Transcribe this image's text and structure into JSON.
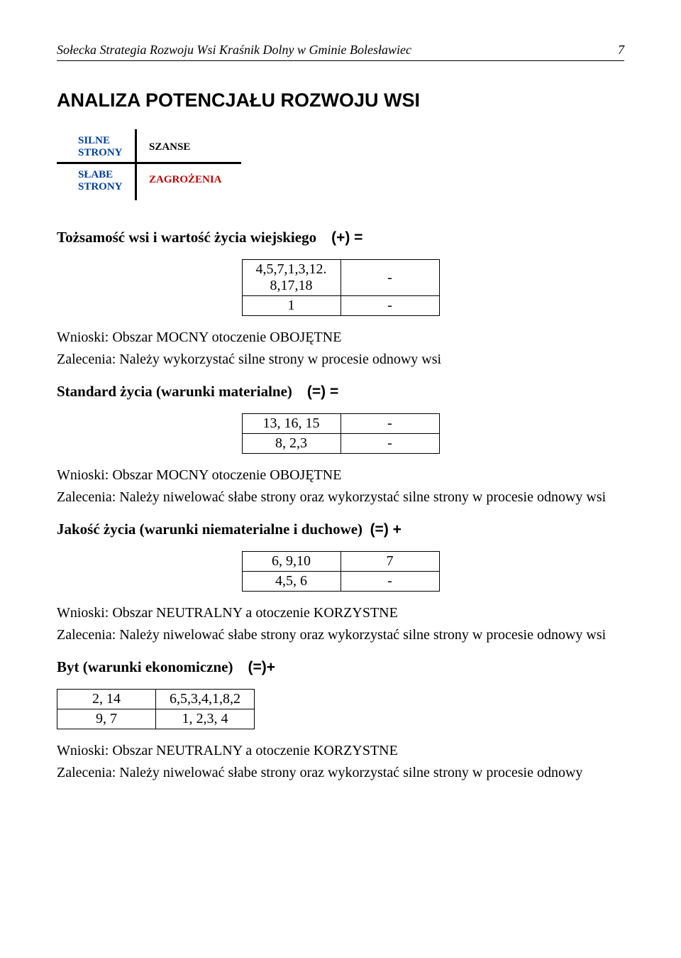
{
  "header": {
    "title_italic": "Sołecka Strategia Rozwoju Wsi  Kraśnik Dolny w Gminie Bolesławiec",
    "page_number": "7"
  },
  "main_title": "ANALIZA POTENCJAŁU ROZWOJU WSI",
  "swot": {
    "silne": "SILNE\nSTRONY",
    "szanse": "SZANSE",
    "slabe": "SŁABE\nSTRONY",
    "zagrozenia": "ZAGROŻENIA",
    "colors": {
      "silne": "#003f9a",
      "slabe": "#003f9a",
      "szanse": "#000000",
      "zagrozenia": "#c00000",
      "lines": "#000000"
    }
  },
  "sections": {
    "tozsamosc": {
      "title": "Tożsamość wsi i wartość życia wiejskiego",
      "expr": "(+) =",
      "table": {
        "r1c1": "4,5,7,1,3,12.\n8,17,18",
        "r1c2": "-",
        "r2c1": "1",
        "r2c2": "-"
      },
      "wnioski": "Wnioski: Obszar MOCNY otoczenie OBOJĘTNE",
      "zalecenia": "Zalecenia: Należy wykorzystać silne strony w procesie odnowy wsi"
    },
    "standard": {
      "title": "Standard życia (warunki materialne)",
      "expr": "(=) =",
      "table": {
        "r1c1": "13, 16, 15",
        "r1c2": "-",
        "r2c1": "8, 2,3",
        "r2c2": "-"
      },
      "wnioski": "Wnioski: Obszar MOCNY otoczenie OBOJĘTNE",
      "zalecenia": "Zalecenia: Należy niwelować słabe strony oraz wykorzystać silne strony w procesie odnowy wsi"
    },
    "jakosc": {
      "title": "Jakość życia (warunki niematerialne i duchowe)",
      "expr": "(=) +",
      "table": {
        "r1c1": "6, 9,10",
        "r1c2": "7",
        "r2c1": "4,5, 6",
        "r2c2": "-"
      },
      "wnioski": "Wnioski: Obszar NEUTRALNY a otoczenie KORZYSTNE",
      "zalecenia": "Zalecenia: Należy niwelować słabe strony oraz wykorzystać silne strony w procesie odnowy wsi"
    },
    "byt": {
      "title": "Byt (warunki ekonomiczne)",
      "expr": "(=)+",
      "table": {
        "r1c1": "2, 14",
        "r1c2": "6,5,3,4,1,8,2",
        "r2c1": "9, 7",
        "r2c2": "1, 2,3, 4"
      },
      "wnioski": "Wnioski: Obszar NEUTRALNY a otoczenie KORZYSTNE",
      "zalecenia": "Zalecenia: Należy niwelować słabe strony oraz wykorzystać silne strony w procesie odnowy"
    }
  }
}
